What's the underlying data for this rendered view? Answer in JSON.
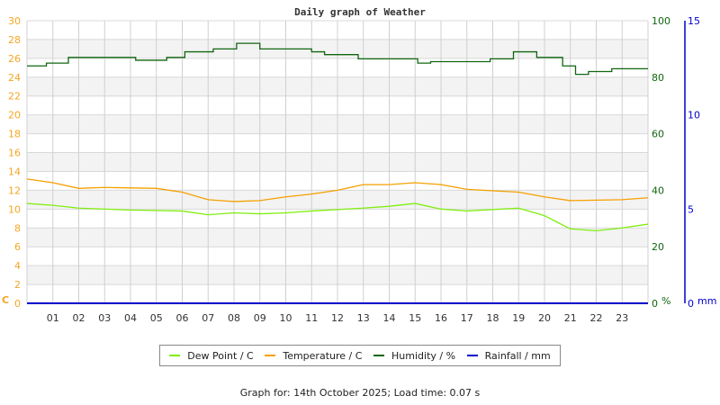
{
  "chart_data": {
    "type": "line",
    "title": "Daily graph of Weather",
    "xlabel": "",
    "x_ticks": [
      "01",
      "02",
      "03",
      "04",
      "05",
      "06",
      "07",
      "08",
      "09",
      "10",
      "11",
      "12",
      "13",
      "14",
      "15",
      "16",
      "17",
      "18",
      "19",
      "20",
      "21",
      "22",
      "23"
    ],
    "x_range_hours": [
      0,
      24
    ],
    "axes": {
      "left": {
        "unit": "C",
        "range": [
          0,
          30
        ],
        "ticks": [
          0,
          2,
          4,
          6,
          8,
          10,
          12,
          14,
          16,
          18,
          20,
          22,
          24,
          26,
          28,
          30
        ],
        "color": "#f5a623"
      },
      "right1": {
        "unit": "%",
        "range": [
          0,
          100
        ],
        "ticks": [
          0,
          20,
          40,
          60,
          80,
          100
        ],
        "color": "#116611"
      },
      "right2": {
        "unit": "mm",
        "range": [
          0,
          15
        ],
        "ticks": [
          0,
          5,
          10,
          15
        ],
        "color": "#0000cc"
      }
    },
    "grid": true,
    "legend_position": "bottom",
    "series": [
      {
        "name": "Dew Point / C",
        "axis": "left",
        "color": "#80ee10",
        "x": [
          0,
          1,
          2,
          4,
          6,
          7,
          8,
          9,
          10,
          11,
          13,
          14,
          15,
          16,
          17,
          19,
          20,
          21,
          22,
          23,
          24
        ],
        "values": [
          10.6,
          10.4,
          10.1,
          9.9,
          9.8,
          9.4,
          9.6,
          9.5,
          9.6,
          9.8,
          10.1,
          10.3,
          10.6,
          10.0,
          9.8,
          10.1,
          9.3,
          7.9,
          7.7,
          8.0,
          8.4
        ]
      },
      {
        "name": "Temperature / C",
        "axis": "left",
        "color": "#f5a000",
        "x": [
          0,
          1,
          2,
          3,
          5,
          6,
          7,
          8,
          9,
          10,
          11,
          12,
          13,
          14,
          15,
          16,
          17,
          19,
          20,
          21,
          23,
          24
        ],
        "values": [
          13.2,
          12.8,
          12.2,
          12.3,
          12.2,
          11.8,
          11.0,
          10.8,
          10.9,
          11.3,
          11.6,
          12.0,
          12.6,
          12.6,
          12.8,
          12.6,
          12.1,
          11.8,
          11.3,
          10.9,
          11.0,
          11.2
        ]
      },
      {
        "name": "Humidity / %",
        "axis": "right1",
        "color": "#116611",
        "x": [
          0,
          0.75,
          1.6,
          4.2,
          5.4,
          6.1,
          7.2,
          8.1,
          9.0,
          11.0,
          11.5,
          12.8,
          15.1,
          15.6,
          17.9,
          18.8,
          19.7,
          20.7,
          21.2,
          21.7,
          22.6,
          24
        ],
        "values": [
          84,
          85,
          87,
          86,
          87,
          89,
          90,
          92,
          90,
          89,
          88,
          86.5,
          85,
          85.5,
          86.5,
          89,
          87,
          84,
          81,
          82,
          83,
          83
        ]
      },
      {
        "name": "Rainfall / mm",
        "axis": "right2",
        "color": "#0000cc",
        "x": [
          0,
          24
        ],
        "values": [
          0,
          0
        ]
      }
    ]
  },
  "axis_unit_labels": {
    "left": "C",
    "right1": "%",
    "right2": "mm"
  },
  "legend": [
    {
      "label": "Dew Point / C",
      "color": "#80ee10"
    },
    {
      "label": "Temperature / C",
      "color": "#f5a000"
    },
    {
      "label": "Humidity / %",
      "color": "#116611"
    },
    {
      "label": "Rainfall / mm",
      "color": "#0000cc"
    }
  ],
  "footer": "Graph for: 14th October 2025; Load time: 0.07 s"
}
